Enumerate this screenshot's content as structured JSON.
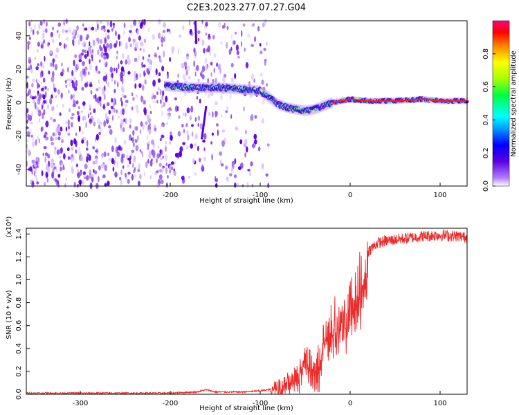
{
  "title": "C2E3.2023.277.07.27.G04",
  "chart_data": [
    {
      "type": "heatmap",
      "title": "C2E3.2023.277.07.27.G04",
      "xlabel": "Height of straight line (km)",
      "ylabel": "Frequency (Hz)",
      "xlim": [
        -360,
        130
      ],
      "ylim": [
        -50,
        49
      ],
      "x_ticks": [
        "-300",
        "-200",
        "-100",
        "0",
        "100"
      ],
      "y_ticks": [
        "-40",
        "-20",
        "0",
        "20",
        "40"
      ],
      "colorbar": {
        "label": "Normalized spectral amplitude",
        "range": [
          0,
          1
        ],
        "ticks": [
          "0.0",
          "0.2",
          "0.4",
          "0.6",
          "0.8"
        ]
      },
      "ridge": {
        "x": [
          -205,
          -180,
          -150,
          -120,
          -100,
          -90,
          -80,
          -70,
          -60,
          -50,
          -40,
          -30,
          -20,
          -10,
          0,
          20,
          50,
          80,
          100,
          130
        ],
        "y": [
          10,
          9,
          9,
          8,
          7,
          3,
          -1,
          -3,
          -4,
          -5,
          -4,
          -2,
          0,
          1,
          2,
          1,
          1,
          2,
          1,
          1
        ]
      },
      "grid": false
    },
    {
      "type": "line",
      "xlabel": "Height of straight line (km)",
      "ylabel": "SNR (10 * v/v)",
      "y_multiplier": "(x10⁴)",
      "xlim": [
        -360,
        130
      ],
      "ylim": [
        0,
        1.45
      ],
      "x_ticks": [
        "-300",
        "-200",
        "-100",
        "0",
        "100"
      ],
      "y_ticks": [
        "0.0",
        "0.2",
        "0.4",
        "0.6",
        "0.8",
        "1.0",
        "1.2",
        "1.4"
      ],
      "series": [
        {
          "color": "#ee2a2a",
          "x": [
            -360,
            -300,
            -200,
            -170,
            -160,
            -150,
            -120,
            -100,
            -80,
            -70,
            -60,
            -55,
            -50,
            -45,
            -40,
            -35,
            -30,
            -25,
            -20,
            -15,
            -10,
            -5,
            0,
            5,
            10,
            15,
            20,
            30,
            40,
            60,
            80,
            100,
            120,
            130
          ],
          "y": [
            0.01,
            0.01,
            0.01,
            0.02,
            0.04,
            0.02,
            0.02,
            0.03,
            0.05,
            0.1,
            0.16,
            0.22,
            0.3,
            0.28,
            0.15,
            0.25,
            0.45,
            0.55,
            0.5,
            0.62,
            0.68,
            0.65,
            0.8,
            0.85,
            0.95,
            1.1,
            1.25,
            1.32,
            1.34,
            1.36,
            1.38,
            1.39,
            1.38,
            1.37
          ]
        }
      ],
      "grid": false
    }
  ]
}
